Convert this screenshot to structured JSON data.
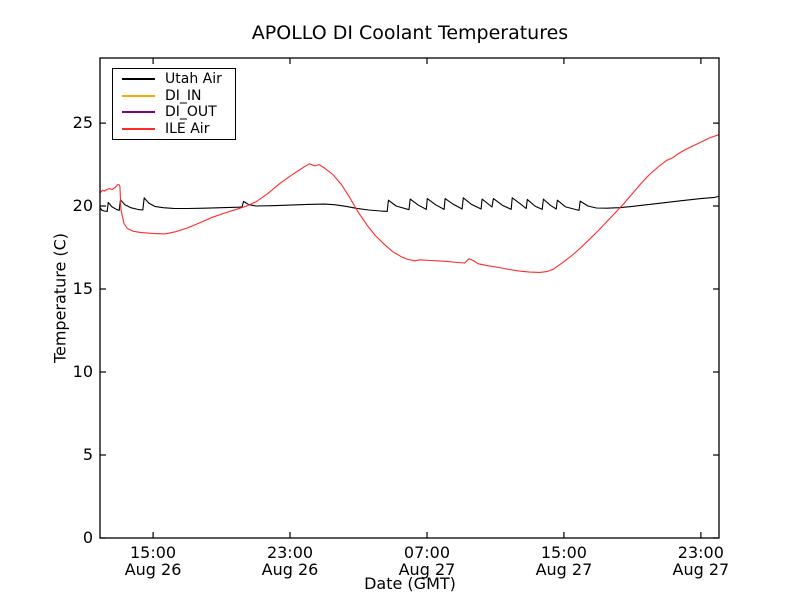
{
  "title": "APOLLO DI Coolant Temperatures",
  "chart_data": {
    "type": "line",
    "title": "APOLLO DI Coolant Temperatures",
    "xlabel": "Date (GMT)",
    "ylabel": "Temperature (C)",
    "ylim": [
      0,
      28.92
    ],
    "xlim_hours": [
      11.9,
      48.06
    ],
    "grid": false,
    "legend_position": "upper left",
    "x_ticks": [
      {
        "hours": 15,
        "time": "15:00",
        "date": "Aug 26"
      },
      {
        "hours": 23,
        "time": "23:00",
        "date": "Aug 26"
      },
      {
        "hours": 31,
        "time": "07:00",
        "date": "Aug 27"
      },
      {
        "hours": 39,
        "time": "15:00",
        "date": "Aug 27"
      },
      {
        "hours": 47,
        "time": "23:00",
        "date": "Aug 27"
      }
    ],
    "y_ticks": [
      {
        "value": 0,
        "label": "0"
      },
      {
        "value": 5,
        "label": "5"
      },
      {
        "value": 10,
        "label": "10"
      },
      {
        "value": 15,
        "label": "15"
      },
      {
        "value": 20,
        "label": "20"
      },
      {
        "value": 25,
        "label": "25"
      }
    ],
    "series": [
      {
        "name": "Utah Air",
        "color": "#000000",
        "points": [
          [
            11.9,
            19.92
          ],
          [
            12.0,
            19.75
          ],
          [
            12.15,
            19.7
          ],
          [
            12.32,
            19.68
          ],
          [
            12.38,
            20.22
          ],
          [
            12.6,
            19.95
          ],
          [
            12.9,
            19.78
          ],
          [
            13.02,
            19.74
          ],
          [
            13.1,
            20.38
          ],
          [
            13.35,
            20.08
          ],
          [
            13.7,
            19.9
          ],
          [
            14.1,
            19.8
          ],
          [
            14.4,
            19.76
          ],
          [
            14.48,
            20.5
          ],
          [
            14.75,
            20.18
          ],
          [
            15.1,
            19.98
          ],
          [
            15.6,
            19.9
          ],
          [
            16.2,
            19.86
          ],
          [
            17.0,
            19.85
          ],
          [
            18.0,
            19.87
          ],
          [
            19.0,
            19.9
          ],
          [
            20.0,
            19.93
          ],
          [
            20.2,
            19.95
          ],
          [
            20.28,
            20.28
          ],
          [
            20.6,
            20.08
          ],
          [
            21.0,
            20.0
          ],
          [
            22.0,
            20.02
          ],
          [
            23.0,
            20.06
          ],
          [
            24.0,
            20.1
          ],
          [
            25.0,
            20.12
          ],
          [
            25.6,
            20.08
          ],
          [
            26.3,
            19.98
          ],
          [
            26.9,
            19.86
          ],
          [
            27.6,
            19.76
          ],
          [
            28.3,
            19.7
          ],
          [
            28.68,
            19.68
          ],
          [
            28.75,
            20.35
          ],
          [
            29.2,
            20.0
          ],
          [
            29.95,
            19.78
          ],
          [
            30.02,
            20.42
          ],
          [
            30.5,
            20.05
          ],
          [
            30.96,
            19.8
          ],
          [
            31.02,
            20.45
          ],
          [
            31.5,
            20.08
          ],
          [
            32.0,
            19.8
          ],
          [
            32.06,
            20.45
          ],
          [
            32.55,
            20.1
          ],
          [
            33.05,
            19.82
          ],
          [
            33.12,
            20.5
          ],
          [
            33.6,
            20.1
          ],
          [
            34.16,
            19.82
          ],
          [
            34.22,
            20.42
          ],
          [
            34.8,
            19.94
          ],
          [
            34.88,
            20.45
          ],
          [
            35.4,
            20.05
          ],
          [
            35.92,
            19.8
          ],
          [
            35.98,
            20.5
          ],
          [
            36.5,
            20.1
          ],
          [
            36.8,
            19.85
          ],
          [
            36.86,
            20.4
          ],
          [
            37.3,
            20.0
          ],
          [
            37.73,
            19.8
          ],
          [
            37.8,
            20.42
          ],
          [
            38.2,
            20.05
          ],
          [
            38.55,
            19.82
          ],
          [
            38.62,
            20.35
          ],
          [
            39.1,
            19.95
          ],
          [
            39.88,
            19.74
          ],
          [
            39.95,
            20.3
          ],
          [
            40.4,
            20.0
          ],
          [
            40.9,
            19.88
          ],
          [
            41.5,
            19.87
          ],
          [
            42.2,
            19.9
          ],
          [
            43.0,
            19.98
          ],
          [
            44.0,
            20.1
          ],
          [
            45.0,
            20.22
          ],
          [
            46.0,
            20.34
          ],
          [
            47.0,
            20.45
          ],
          [
            47.8,
            20.52
          ],
          [
            48.05,
            20.58
          ]
        ]
      },
      {
        "name": "DI_IN",
        "color": "#ffa500",
        "points": []
      },
      {
        "name": "DI_OUT",
        "color": "#800080",
        "points": []
      },
      {
        "name": "ILE Air",
        "color": "#ff2a2a",
        "points": [
          [
            11.9,
            20.8
          ],
          [
            12.05,
            20.95
          ],
          [
            12.15,
            20.9
          ],
          [
            12.3,
            21.0
          ],
          [
            12.45,
            21.05
          ],
          [
            12.6,
            21.0
          ],
          [
            12.78,
            21.12
          ],
          [
            12.92,
            21.28
          ],
          [
            13.0,
            21.3
          ],
          [
            13.06,
            21.2
          ],
          [
            13.12,
            19.8
          ],
          [
            13.3,
            18.95
          ],
          [
            13.5,
            18.65
          ],
          [
            13.85,
            18.48
          ],
          [
            14.3,
            18.4
          ],
          [
            15.0,
            18.35
          ],
          [
            15.7,
            18.32
          ],
          [
            16.3,
            18.45
          ],
          [
            17.0,
            18.68
          ],
          [
            17.7,
            18.98
          ],
          [
            18.4,
            19.3
          ],
          [
            19.1,
            19.55
          ],
          [
            19.8,
            19.78
          ],
          [
            20.4,
            19.97
          ],
          [
            21.0,
            20.25
          ],
          [
            21.7,
            20.75
          ],
          [
            22.4,
            21.35
          ],
          [
            23.0,
            21.8
          ],
          [
            23.5,
            22.15
          ],
          [
            23.9,
            22.4
          ],
          [
            24.15,
            22.55
          ],
          [
            24.45,
            22.42
          ],
          [
            24.7,
            22.5
          ],
          [
            25.0,
            22.3
          ],
          [
            25.5,
            21.9
          ],
          [
            26.0,
            21.3
          ],
          [
            26.5,
            20.5
          ],
          [
            27.0,
            19.6
          ],
          [
            27.5,
            18.85
          ],
          [
            28.0,
            18.2
          ],
          [
            28.5,
            17.7
          ],
          [
            29.0,
            17.25
          ],
          [
            29.5,
            16.95
          ],
          [
            29.9,
            16.78
          ],
          [
            30.3,
            16.7
          ],
          [
            30.6,
            16.76
          ],
          [
            31.2,
            16.72
          ],
          [
            32.0,
            16.68
          ],
          [
            32.8,
            16.6
          ],
          [
            33.2,
            16.57
          ],
          [
            33.45,
            16.82
          ],
          [
            33.7,
            16.72
          ],
          [
            34.0,
            16.52
          ],
          [
            34.6,
            16.4
          ],
          [
            35.2,
            16.3
          ],
          [
            35.8,
            16.18
          ],
          [
            36.4,
            16.08
          ],
          [
            37.0,
            16.02
          ],
          [
            37.6,
            16.0
          ],
          [
            38.0,
            16.05
          ],
          [
            38.4,
            16.2
          ],
          [
            39.0,
            16.65
          ],
          [
            39.5,
            17.05
          ],
          [
            40.0,
            17.5
          ],
          [
            40.5,
            18.0
          ],
          [
            41.0,
            18.5
          ],
          [
            41.5,
            19.05
          ],
          [
            42.0,
            19.6
          ],
          [
            42.5,
            20.15
          ],
          [
            43.0,
            20.75
          ],
          [
            43.5,
            21.35
          ],
          [
            44.0,
            21.9
          ],
          [
            44.5,
            22.35
          ],
          [
            45.0,
            22.75
          ],
          [
            45.35,
            22.9
          ],
          [
            45.6,
            23.1
          ],
          [
            46.0,
            23.35
          ],
          [
            46.5,
            23.6
          ],
          [
            47.0,
            23.85
          ],
          [
            47.5,
            24.1
          ],
          [
            48.05,
            24.3
          ]
        ]
      }
    ]
  }
}
